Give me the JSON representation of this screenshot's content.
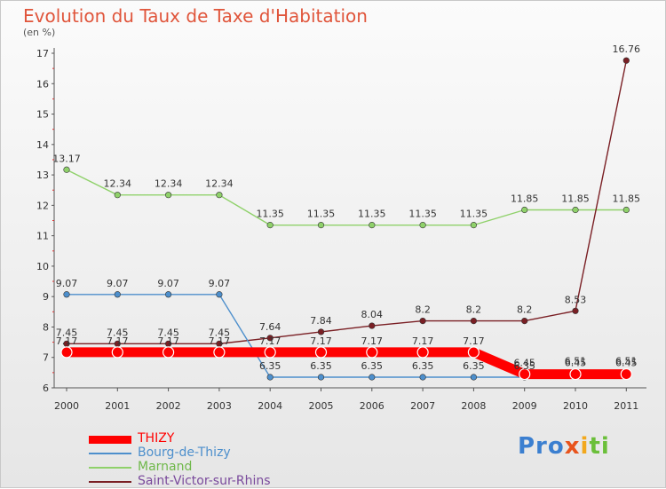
{
  "page": {
    "title": "Evolution du Taux de Taxe d'Habitation",
    "unit": "(en %)"
  },
  "logo": {
    "parts": [
      "Pro",
      "x",
      "i",
      "ti"
    ]
  },
  "chart_data": {
    "type": "line",
    "title": "Evolution du Taux de Taxe d'Habitation",
    "ylabel": "(en %)",
    "xlabel": "",
    "x": [
      "2000",
      "2001",
      "2002",
      "2003",
      "2004",
      "2005",
      "2006",
      "2007",
      "2008",
      "2009",
      "2010",
      "2011"
    ],
    "ylim": [
      6,
      17
    ],
    "yticks": [
      6,
      7,
      8,
      9,
      10,
      11,
      12,
      13,
      14,
      15,
      16,
      17
    ],
    "grid": false,
    "legend_position": "bottom-left",
    "series": [
      {
        "name": "THIZY",
        "color": "#ff0000",
        "labels": [
          "7.17",
          "7.17",
          "7.17",
          "7.17",
          "7.17",
          "7.17",
          "7.17",
          "7.17",
          "7.17",
          "6.45",
          "6.45",
          "6.45"
        ],
        "values": [
          7.17,
          7.17,
          7.17,
          7.17,
          7.17,
          7.17,
          7.17,
          7.17,
          7.17,
          6.45,
          6.45,
          6.45
        ]
      },
      {
        "name": "Bourg-de-Thizy",
        "color": "#4d8fcc",
        "labels": [
          "9.07",
          "9.07",
          "9.07",
          "9.07",
          "6.35",
          "6.35",
          "6.35",
          "6.35",
          "6.35",
          "6.35",
          "6.51",
          "6.51"
        ],
        "values": [
          9.07,
          9.07,
          9.07,
          9.07,
          6.35,
          6.35,
          6.35,
          6.35,
          6.35,
          6.35,
          6.51,
          6.51
        ]
      },
      {
        "name": "Marnand",
        "color": "#8fd16a",
        "labels": [
          "13.17",
          "12.34",
          "12.34",
          "12.34",
          "11.35",
          "11.35",
          "11.35",
          "11.35",
          "11.35",
          "11.85",
          "11.85",
          "11.85"
        ],
        "values": [
          13.17,
          12.34,
          12.34,
          12.34,
          11.35,
          11.35,
          11.35,
          11.35,
          11.35,
          11.85,
          11.85,
          11.85
        ]
      },
      {
        "name": "Saint-Victor-sur-Rhins",
        "color": "#7a1f24",
        "labels": [
          "7.45",
          "7.45",
          "7.45",
          "7.45",
          "7.64",
          "7.84",
          "8.04",
          "8.2",
          "8.2",
          "8.2",
          "8.53",
          "16.76"
        ],
        "values": [
          7.45,
          7.45,
          7.45,
          7.45,
          7.64,
          7.84,
          8.04,
          8.2,
          8.2,
          8.2,
          8.53,
          16.76
        ]
      }
    ]
  }
}
